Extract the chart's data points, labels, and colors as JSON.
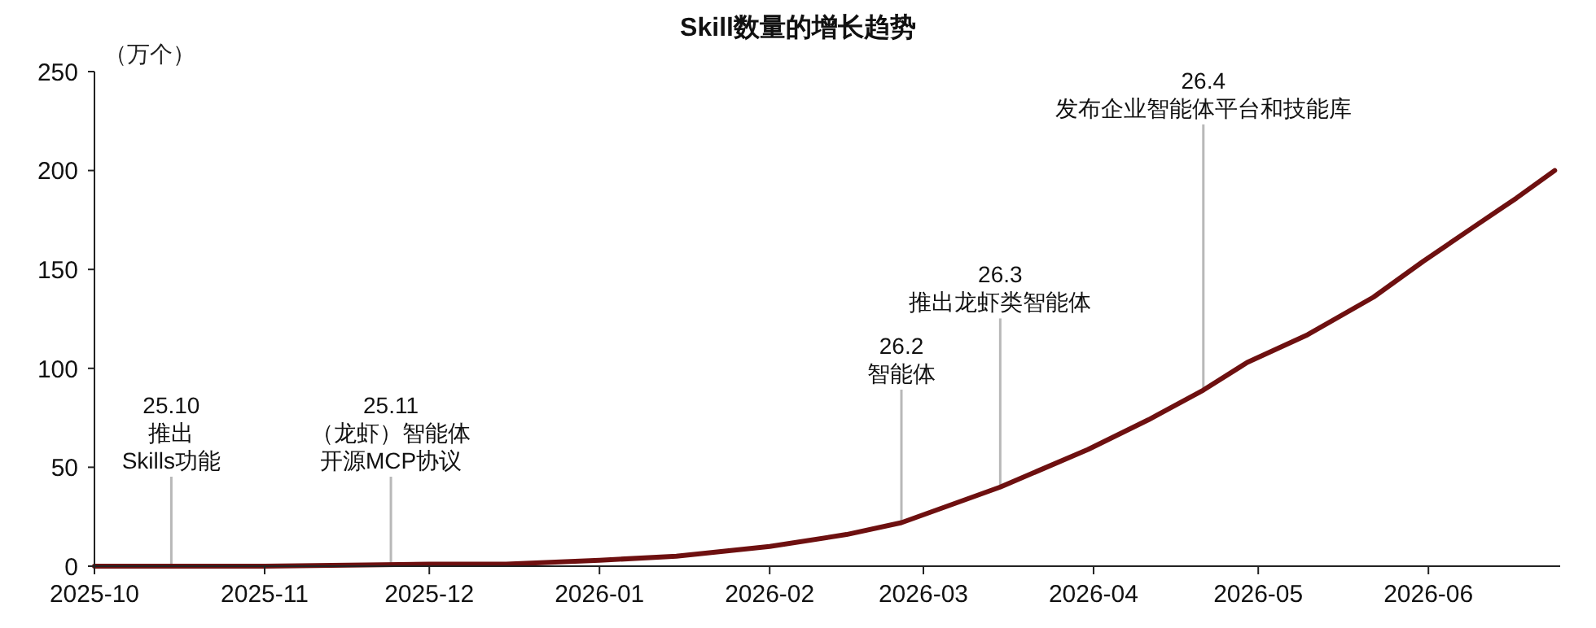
{
  "chart_data": {
    "type": "line",
    "title": "Skill数量的增长趋势",
    "ylabel": "（万个）",
    "x": [
      "2025-10-01",
      "2025-11-01",
      "2025-12-01",
      "2025-12-15",
      "2026-01-01",
      "2026-01-15",
      "2026-02-01",
      "2026-02-15",
      "2026-02-25",
      "2026-03-04",
      "2026-03-15",
      "2026-03-31",
      "2026-04-11",
      "2026-04-21",
      "2026-04-29",
      "2026-05-10",
      "2026-05-22",
      "2026-05-31",
      "2026-06-09",
      "2026-06-17",
      "2026-06-24"
    ],
    "series": [
      {
        "color": "#6e1010",
        "values": [
          0,
          0,
          1,
          1,
          3,
          5,
          10,
          16,
          22,
          29,
          40,
          59,
          74,
          89,
          103,
          117,
          136,
          154,
          171,
          186,
          200
        ]
      }
    ],
    "xlim": [
      "2025-10-01",
      "2026-06-25"
    ],
    "xticks": [
      {
        "value": "2025-10-01",
        "label": "2025-10"
      },
      {
        "value": "2025-11-01",
        "label": "2025-11"
      },
      {
        "value": "2025-12-01",
        "label": "2025-12"
      },
      {
        "value": "2026-01-01",
        "label": "2026-01"
      },
      {
        "value": "2026-02-01",
        "label": "2026-02"
      },
      {
        "value": "2026-03-01",
        "label": "2026-03"
      },
      {
        "value": "2026-04-01",
        "label": "2026-04"
      },
      {
        "value": "2026-05-01",
        "label": "2026-05"
      },
      {
        "value": "2026-06-01",
        "label": "2026-06"
      }
    ],
    "ylim": [
      0,
      250
    ],
    "yticks": [
      0,
      50,
      100,
      150,
      200,
      250
    ],
    "annotations": [
      {
        "text": "25.10\n推出\nSkills功能",
        "x": "2025-10-15",
        "y": 0
      },
      {
        "text": "25.11\n（龙虾）智能体开源MCP协议",
        "x": "2025-11-24",
        "y": 0
      },
      {
        "text": "26.2\n智能体",
        "x": "2026-02-25",
        "y": 22
      },
      {
        "text": "26.3\n推出龙虾类智能体",
        "x": "2026-03-15",
        "y": 40
      },
      {
        "text": "26.4\n发布企业智能体平台和技能库",
        "x": "2026-04-21",
        "y": 89
      }
    ],
    "grid": false,
    "marker": "none",
    "line_style": "solid"
  }
}
